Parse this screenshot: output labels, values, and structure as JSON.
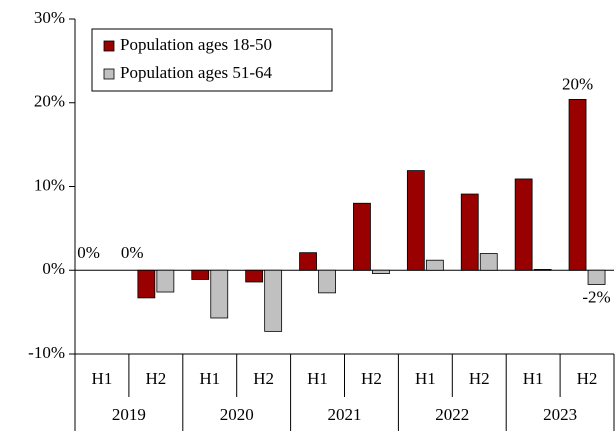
{
  "chart_data": {
    "type": "bar",
    "categories": [
      "H1",
      "H2",
      "H1",
      "H2",
      "H1",
      "H2",
      "H1",
      "H2",
      "H1",
      "H2"
    ],
    "group_labels": [
      "2019",
      "2020",
      "2021",
      "2022",
      "2023"
    ],
    "series": [
      {
        "name": "Population ages 18-50",
        "color": "#990000",
        "values": [
          0,
          -3.3,
          -1.1,
          -1.4,
          2.1,
          8.0,
          11.9,
          9.1,
          10.9,
          20.4
        ],
        "value_labels": [
          "0%",
          null,
          null,
          null,
          null,
          null,
          null,
          null,
          null,
          "20%"
        ]
      },
      {
        "name": "Population ages 51-64",
        "color": "#c0c0c0",
        "values": [
          0,
          -2.6,
          -5.7,
          -7.3,
          -2.7,
          -0.4,
          1.2,
          2.0,
          0.1,
          -1.7
        ],
        "value_labels": [
          "0%",
          null,
          null,
          null,
          null,
          null,
          null,
          null,
          null,
          "-2%"
        ]
      }
    ],
    "ylim": [
      -10,
      30
    ],
    "yticks": [
      {
        "value": -10,
        "label": "-10%"
      },
      {
        "value": 0,
        "label": "0%"
      },
      {
        "value": 10,
        "label": "10%"
      },
      {
        "value": 20,
        "label": "20%"
      },
      {
        "value": 30,
        "label": "30%"
      }
    ],
    "legend": "upper left"
  }
}
